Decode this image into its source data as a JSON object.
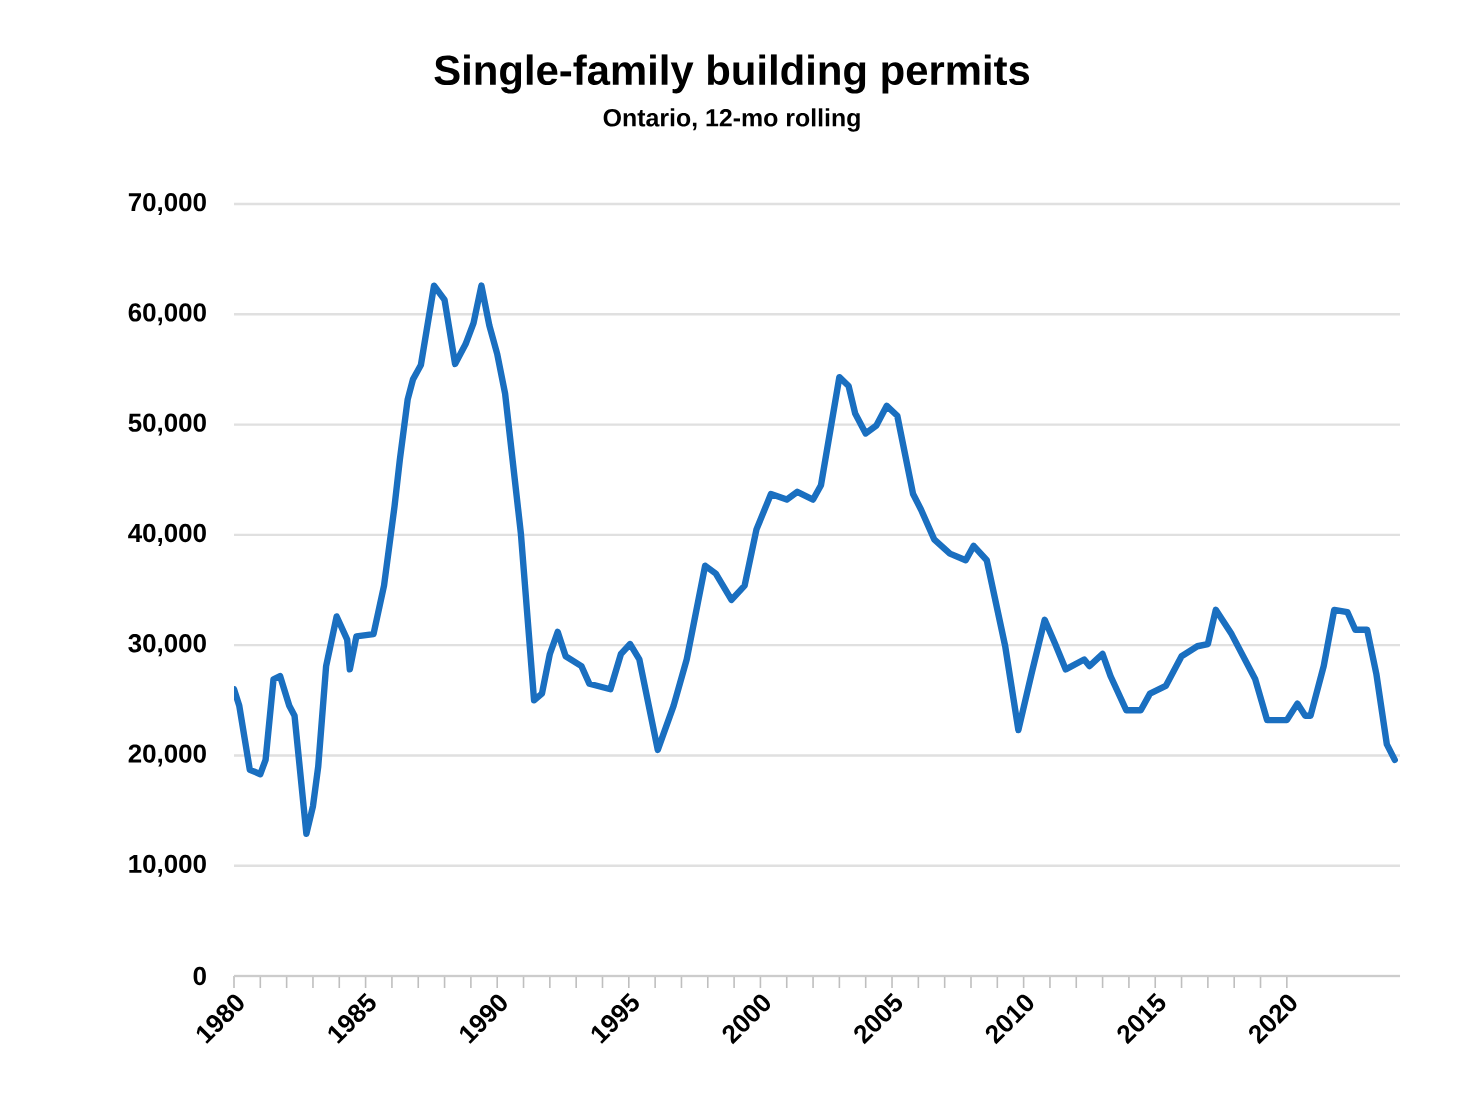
{
  "chart_data": {
    "type": "line",
    "title": "Single-family building permits",
    "subtitle": "Ontario, 12-mo rolling",
    "series": [
      {
        "color": "#1a6fc0",
        "x": [
          1980.0,
          1980.2,
          1980.6,
          1981.0,
          1981.2,
          1981.5,
          1981.75,
          1982.1,
          1982.3,
          1982.75,
          1983.0,
          1983.2,
          1983.5,
          1983.9,
          1984.3,
          1984.4,
          1984.65,
          1985.3,
          1985.7,
          1986.1,
          1986.3,
          1986.6,
          1986.8,
          1987.1,
          1987.6,
          1988.0,
          1988.4,
          1988.8,
          1989.1,
          1989.4,
          1989.7,
          1990.0,
          1990.3,
          1990.9,
          1991.4,
          1991.7,
          1992.0,
          1992.3,
          1992.6,
          1993.2,
          1993.5,
          1994.3,
          1994.7,
          1995.05,
          1995.4,
          1996.1,
          1996.7,
          1997.2,
          1997.9,
          1998.3,
          1998.9,
          1999.4,
          1999.85,
          2000.4,
          2001.0,
          2001.4,
          2002.0,
          2002.3,
          2003.0,
          2003.35,
          2003.6,
          2004.0,
          2004.4,
          2004.8,
          2005.2,
          2005.8,
          2006.1,
          2006.6,
          2007.2,
          2007.8,
          2008.1,
          2008.6,
          2009.3,
          2009.8,
          2010.3,
          2010.8,
          2011.2,
          2011.6,
          2012.3,
          2012.5,
          2013.0,
          2013.3,
          2013.9,
          2014.45,
          2014.8,
          2015.4,
          2016.0,
          2016.6,
          2017.0,
          2017.3,
          2017.9,
          2018.8,
          2019.25,
          2020.0,
          2020.4,
          2020.7,
          2020.9,
          2021.4,
          2021.8,
          2022.3,
          2022.6,
          2023.05,
          2023.4,
          2023.8,
          2024.1
        ],
        "values": [
          26000,
          24500,
          18700,
          18300,
          19600,
          26900,
          27200,
          24500,
          23600,
          12900,
          15400,
          19000,
          28100,
          32600,
          30500,
          27800,
          30800,
          31000,
          35400,
          42600,
          46800,
          52300,
          54100,
          55400,
          62600,
          61300,
          55500,
          57300,
          59200,
          62600,
          59000,
          56400,
          52800,
          40100,
          25000,
          25600,
          29200,
          31200,
          29000,
          28100,
          26500,
          26000,
          29200,
          30100,
          28700,
          20500,
          24500,
          28700,
          37200,
          36500,
          34100,
          35400,
          40500,
          43700,
          43200,
          43900,
          43200,
          44500,
          54300,
          53500,
          51000,
          49200,
          49900,
          51700,
          50800,
          43700,
          42300,
          39600,
          38300,
          37700,
          39000,
          37700,
          29900,
          22300,
          27400,
          32300,
          30100,
          27800,
          28700,
          28100,
          29200,
          27200,
          24100,
          24100,
          25600,
          26300,
          29000,
          29900,
          30100,
          33200,
          31000,
          26900,
          23200,
          23200,
          24700,
          23600,
          23600,
          28100,
          33200,
          33000,
          31400,
          31400,
          27400,
          21000,
          19600
        ]
      }
    ],
    "xlim": [
      1980,
      2024.3
    ],
    "xticks": [
      1980,
      1985,
      1990,
      1995,
      2000,
      2005,
      2010,
      2015,
      2020
    ],
    "ylim": [
      0,
      70000
    ],
    "yticks": [
      {
        "value": 0,
        "label": "0"
      },
      {
        "value": 10000,
        "label": "10,000"
      },
      {
        "value": 20000,
        "label": "20,000"
      },
      {
        "value": 30000,
        "label": "30,000"
      },
      {
        "value": 40000,
        "label": "40,000"
      },
      {
        "value": 50000,
        "label": "50,000"
      },
      {
        "value": 60000,
        "label": "60,000"
      },
      {
        "value": 70000,
        "label": "70,000"
      }
    ],
    "grid": "y",
    "marker": "none",
    "line_style": "solid"
  }
}
